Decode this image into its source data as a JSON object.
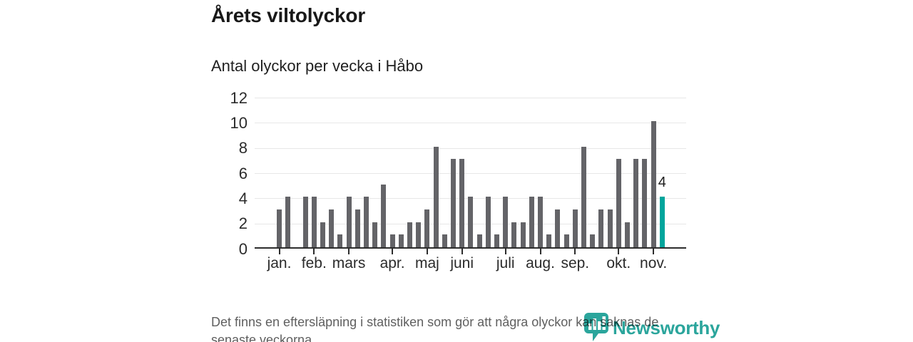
{
  "page": {
    "title": "Årets viltolyckor",
    "subtitle": "Antal olyckor per vecka i Håbo",
    "footer_lines": [
      "Det finns en eftersläpning i statistiken som gör att några olyckor kan saknas de",
      "senaste veckorna."
    ],
    "brand_name": "Newsworthy",
    "brand_color": "#2ba59c"
  },
  "chart_data": {
    "type": "bar",
    "title": "Årets viltolyckor",
    "subtitle": "Antal olyckor per vecka i Håbo",
    "xlabel": "",
    "ylabel": "",
    "x_unit": "vecka",
    "first_week": 1,
    "values": [
      3,
      4,
      0,
      4,
      4,
      2,
      3,
      1,
      4,
      3,
      4,
      2,
      5,
      1,
      1,
      2,
      2,
      3,
      8,
      1,
      7,
      7,
      4,
      1,
      4,
      1,
      4,
      2,
      2,
      4,
      4,
      1,
      3,
      1,
      3,
      8,
      1,
      3,
      3,
      7,
      2,
      7,
      7,
      10,
      4
    ],
    "month_ticks": [
      {
        "label": "jan.",
        "week": 1
      },
      {
        "label": "feb.",
        "week": 5
      },
      {
        "label": "mars",
        "week": 9
      },
      {
        "label": "apr.",
        "week": 14
      },
      {
        "label": "maj",
        "week": 18
      },
      {
        "label": "juni",
        "week": 22
      },
      {
        "label": "juli",
        "week": 27
      },
      {
        "label": "aug.",
        "week": 31
      },
      {
        "label": "sep.",
        "week": 35
      },
      {
        "label": "okt.",
        "week": 40
      },
      {
        "label": "nov.",
        "week": 44
      }
    ],
    "y_ticks": [
      0,
      2,
      4,
      6,
      8,
      10,
      12
    ],
    "ylim": [
      0,
      12
    ],
    "grid": "horizontal",
    "legend": "none",
    "highlight": {
      "index": 44,
      "value": 4,
      "label": "4"
    },
    "colors": {
      "bar": "#646468",
      "highlight": "#00a59c",
      "gridline": "#e7e7e7",
      "axis": "#2d2d2d"
    }
  }
}
